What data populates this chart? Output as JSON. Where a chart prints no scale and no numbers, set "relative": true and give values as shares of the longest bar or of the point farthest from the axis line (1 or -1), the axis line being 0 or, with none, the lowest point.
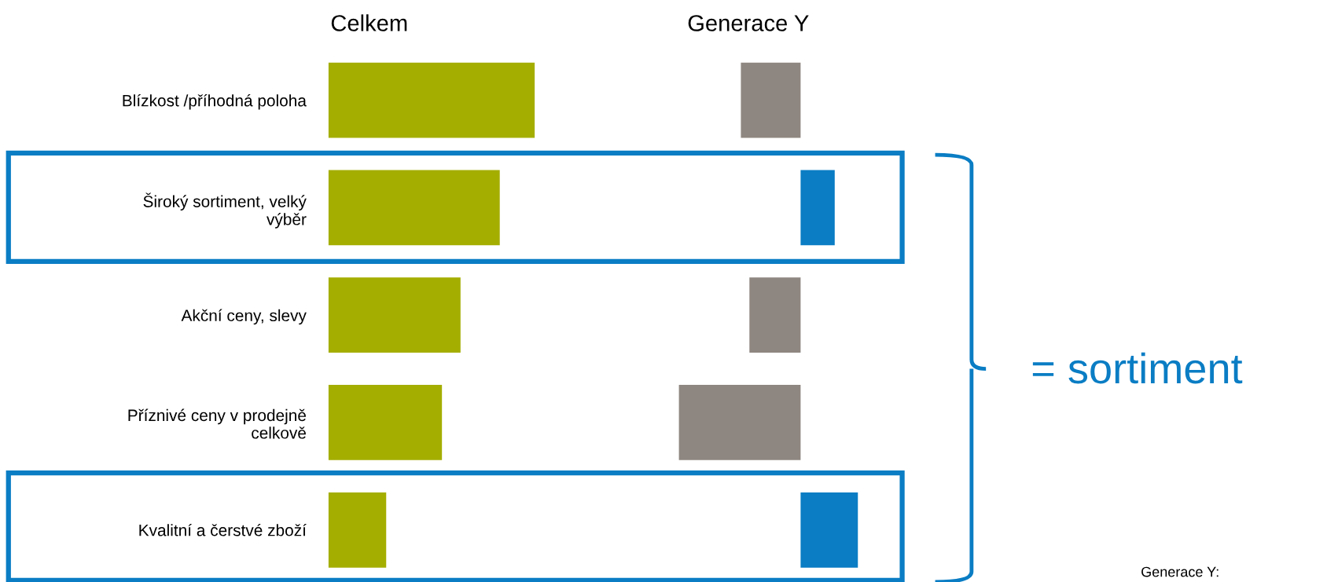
{
  "chart_data": [
    {
      "type": "bar",
      "orientation": "horizontal",
      "relative": true,
      "title": "Celkem",
      "tick_labels": "y",
      "categories": [
        "Blízkost /příhodná poloha",
        "Široký sortiment, velký výběr",
        "Akční ceny, slevy",
        "Příznivé ceny v prodejně celkově",
        "Kvalitní a čerstvé zboží"
      ],
      "values": [
        1,
        0.83,
        0.64,
        0.55,
        0.28
      ],
      "color": "#a4ae00"
    },
    {
      "type": "bar",
      "orientation": "horizontal",
      "relative": true,
      "title": "Generace Y",
      "tick_labels": false,
      "categories": [
        null,
        null,
        null,
        null,
        null
      ],
      "values": [
        -0.49,
        0.28,
        -0.42,
        -1,
        0.47
      ],
      "colors": [
        "#8e8680",
        "#0a7dc4",
        "#8e8680",
        "#8e8680",
        "#0a7dc4"
      ],
      "annotations": [
        "= sortiment",
        "Generace Y:"
      ]
    }
  ]
}
